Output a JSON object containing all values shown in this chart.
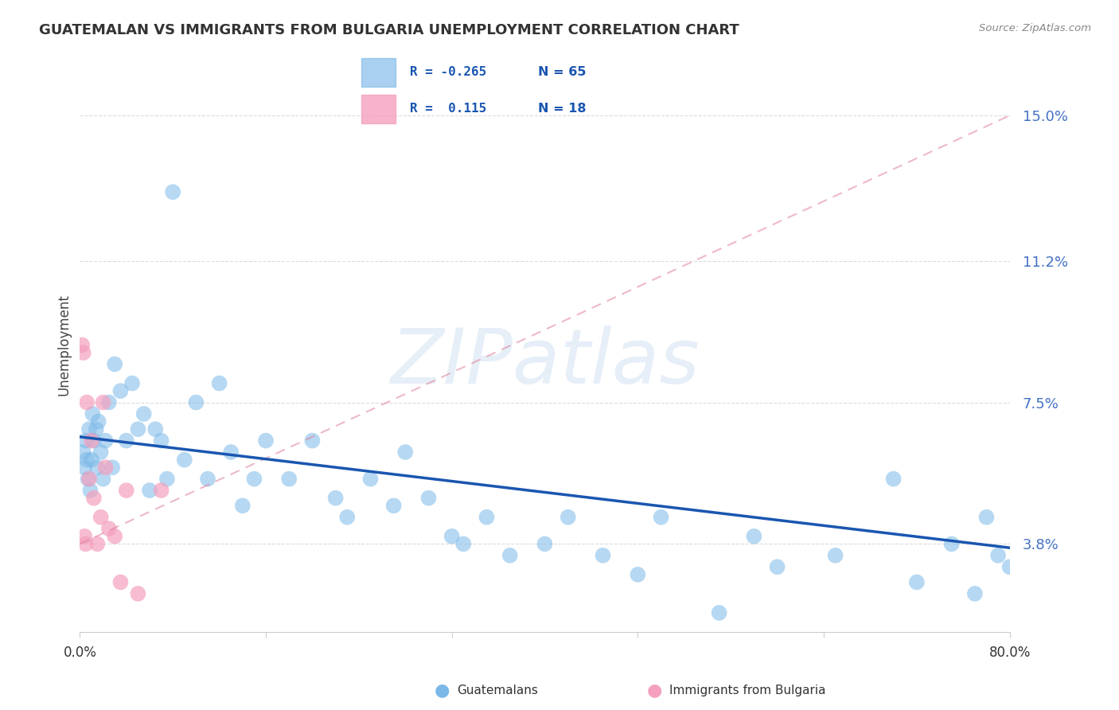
{
  "title": "GUATEMALAN VS IMMIGRANTS FROM BULGARIA UNEMPLOYMENT CORRELATION CHART",
  "source": "Source: ZipAtlas.com",
  "ylabel": "Unemployment",
  "ytick_vals": [
    3.8,
    7.5,
    11.2,
    15.0
  ],
  "xlim": [
    0,
    80
  ],
  "ylim": [
    1.5,
    16.5
  ],
  "blue_color": "#7BB8E8",
  "pink_color": "#F4A0BE",
  "trend_blue_color": "#1A56B0",
  "trend_pink_color": "#E08098",
  "blue_R": "-0.265",
  "blue_N": "65",
  "pink_R": "0.115",
  "pink_N": "18",
  "guatemalan_x": [
    0.3,
    0.4,
    0.5,
    0.6,
    0.7,
    0.8,
    0.9,
    1.0,
    1.1,
    1.2,
    1.4,
    1.5,
    1.6,
    1.8,
    2.0,
    2.2,
    2.5,
    2.8,
    3.0,
    3.5,
    4.0,
    4.5,
    5.0,
    5.5,
    6.0,
    6.5,
    7.0,
    7.5,
    8.0,
    9.0,
    10.0,
    11.0,
    12.0,
    13.0,
    14.0,
    15.0,
    16.0,
    18.0,
    20.0,
    22.0,
    23.0,
    25.0,
    27.0,
    28.0,
    30.0,
    32.0,
    33.0,
    35.0,
    37.0,
    40.0,
    42.0,
    45.0,
    48.0,
    50.0,
    55.0,
    58.0,
    60.0,
    65.0,
    70.0,
    72.0,
    75.0,
    77.0,
    78.0,
    79.0,
    80.0
  ],
  "guatemalan_y": [
    6.2,
    5.8,
    6.5,
    6.0,
    5.5,
    6.8,
    5.2,
    6.0,
    7.2,
    6.5,
    6.8,
    5.8,
    7.0,
    6.2,
    5.5,
    6.5,
    7.5,
    5.8,
    8.5,
    7.8,
    6.5,
    8.0,
    6.8,
    7.2,
    5.2,
    6.8,
    6.5,
    5.5,
    13.0,
    6.0,
    7.5,
    5.5,
    8.0,
    6.2,
    4.8,
    5.5,
    6.5,
    5.5,
    6.5,
    5.0,
    4.5,
    5.5,
    4.8,
    6.2,
    5.0,
    4.0,
    3.8,
    4.5,
    3.5,
    3.8,
    4.5,
    3.5,
    3.0,
    4.5,
    2.0,
    4.0,
    3.2,
    3.5,
    5.5,
    2.8,
    3.8,
    2.5,
    4.5,
    3.5,
    3.2
  ],
  "bulgarian_x": [
    0.2,
    0.3,
    0.4,
    0.5,
    0.6,
    0.8,
    1.0,
    1.2,
    1.5,
    1.8,
    2.0,
    2.2,
    2.5,
    3.0,
    3.5,
    4.0,
    5.0,
    7.0
  ],
  "bulgarian_y": [
    9.0,
    8.8,
    4.0,
    3.8,
    7.5,
    5.5,
    6.5,
    5.0,
    3.8,
    4.5,
    7.5,
    5.8,
    4.2,
    4.0,
    2.8,
    5.2,
    2.5,
    5.2
  ],
  "blue_trend_x0": 0,
  "blue_trend_x1": 80,
  "blue_trend_y0": 6.6,
  "blue_trend_y1": 3.7,
  "pink_trend_x0": 0,
  "pink_trend_x1": 80,
  "pink_trend_y0": 3.8,
  "pink_trend_y1": 15.0
}
